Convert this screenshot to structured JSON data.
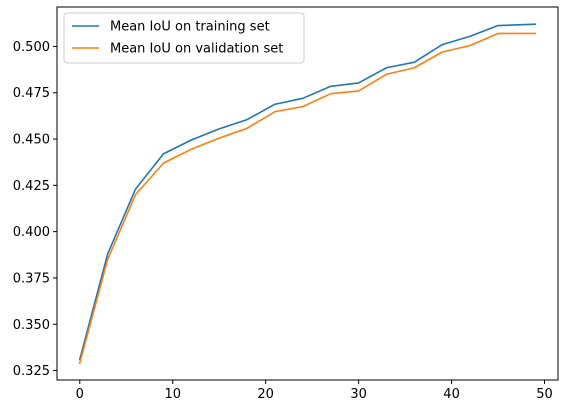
{
  "chart_data": {
    "type": "line",
    "title": "",
    "xlabel": "",
    "ylabel": "",
    "xlim": [
      -2.45,
      51.45
    ],
    "ylim": [
      0.3199,
      0.5213
    ],
    "xticks": [
      0,
      10,
      20,
      30,
      40,
      50
    ],
    "yticks": [
      0.325,
      0.35,
      0.375,
      0.4,
      0.425,
      0.45,
      0.475,
      0.5
    ],
    "ytick_labels": [
      "0.325",
      "0.350",
      "0.375",
      "0.400",
      "0.425",
      "0.450",
      "0.475",
      "0.500"
    ],
    "grid": false,
    "legend_position": "top-left",
    "x": [
      0,
      3,
      6,
      9,
      12,
      15,
      18,
      21,
      24,
      27,
      30,
      33,
      36,
      39,
      42,
      45,
      49
    ],
    "series": [
      {
        "name": "Mean IoU on training set",
        "color": "#1f77b4",
        "values": [
          0.331,
          0.388,
          0.423,
          0.442,
          0.4495,
          0.4555,
          0.4605,
          0.4688,
          0.472,
          0.4785,
          0.4803,
          0.4885,
          0.4915,
          0.501,
          0.5055,
          0.5113,
          0.512
        ]
      },
      {
        "name": "Mean IoU on validation set",
        "color": "#ff7f0e",
        "values": [
          0.329,
          0.385,
          0.42,
          0.437,
          0.4445,
          0.4505,
          0.4558,
          0.4648,
          0.4675,
          0.4745,
          0.476,
          0.485,
          0.4885,
          0.497,
          0.5005,
          0.507,
          0.507
        ]
      }
    ]
  }
}
